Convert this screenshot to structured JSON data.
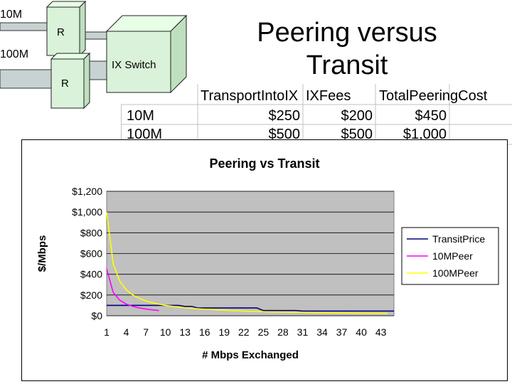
{
  "diagram": {
    "speed_10m": "10M",
    "speed_100m": "100M",
    "router_label_1": "R",
    "router_label_2": "R",
    "switch_label": "IX Switch"
  },
  "slide": {
    "title_line1": "Peering versus",
    "title_line2": "Transit"
  },
  "table": {
    "headers": [
      "TransportIntoIX",
      "IXFees",
      "TotalPeeringCost"
    ],
    "rows": [
      {
        "label": "10M",
        "transport": "$250",
        "fees": "$200",
        "total": "$450"
      },
      {
        "label": "100M",
        "transport": "$500",
        "fees": "$500",
        "total": "$1,000"
      }
    ]
  },
  "chart_data": {
    "type": "line",
    "title": "Peering vs Transit",
    "xlabel": "# Mbps Exchanged",
    "ylabel": "$/Mbps",
    "xlim": [
      1,
      45
    ],
    "ylim": [
      0,
      1200
    ],
    "yticks": [
      0,
      200,
      400,
      600,
      800,
      1000,
      1200
    ],
    "ytick_labels": [
      "$0",
      "$200",
      "$400",
      "$600",
      "$800",
      "$1,000",
      "$1,200"
    ],
    "xticks": [
      1,
      4,
      7,
      10,
      13,
      16,
      19,
      22,
      25,
      28,
      31,
      34,
      37,
      40,
      43
    ],
    "grid": true,
    "legend_position": "right",
    "series": [
      {
        "name": "TransitPrice",
        "color": "#000080",
        "x": [
          1,
          12,
          13,
          14,
          15,
          24,
          25,
          30,
          31,
          45
        ],
        "y": [
          100,
          100,
          90,
          90,
          75,
          75,
          50,
          50,
          45,
          45
        ]
      },
      {
        "name": "10MPeer",
        "color": "#ff00ff",
        "x": [
          1,
          2,
          3,
          4,
          5,
          6,
          7,
          8,
          9
        ],
        "y": [
          450,
          225,
          150,
          112.5,
          90,
          75,
          64.3,
          56.3,
          50
        ]
      },
      {
        "name": "100MPeer",
        "color": "#ffff00",
        "x": [
          1,
          2,
          3,
          4,
          5,
          6,
          7,
          8,
          9,
          10,
          12,
          14,
          16,
          18,
          20,
          22,
          24,
          26,
          28,
          30,
          32,
          34,
          36,
          38,
          40,
          42,
          44
        ],
        "y": [
          1000,
          500,
          333,
          250,
          200,
          167,
          143,
          125,
          111,
          100,
          83,
          71,
          63,
          56,
          50,
          45,
          42,
          38,
          36,
          33,
          31,
          29,
          28,
          26,
          25,
          24,
          23
        ]
      }
    ]
  }
}
